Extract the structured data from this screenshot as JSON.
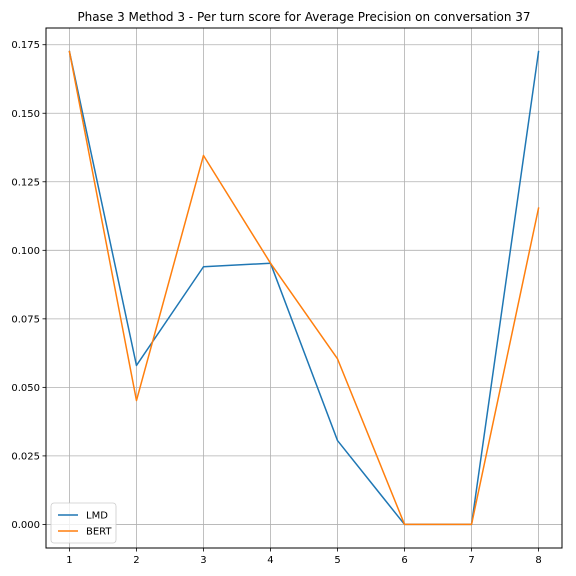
{
  "chart_data": {
    "type": "line",
    "title": "Phase 3 Method 3 - Per turn score for Average Precision on conversation 37",
    "xlabel": "",
    "ylabel": "",
    "x": [
      1,
      2,
      3,
      4,
      5,
      6,
      7,
      8
    ],
    "xticks": [
      "1",
      "2",
      "3",
      "4",
      "5",
      "6",
      "7",
      "8"
    ],
    "yticks": [
      "0.000",
      "0.025",
      "0.050",
      "0.075",
      "0.100",
      "0.125",
      "0.150",
      "0.175"
    ],
    "ylim": [
      -0.0086,
      0.1811
    ],
    "xlim": [
      0.65,
      8.35
    ],
    "grid": true,
    "legend": "lower-left",
    "series": [
      {
        "name": "LMD",
        "color": "#1f77b4",
        "values": [
          0.1725,
          0.058,
          0.094,
          0.0953,
          0.0306,
          0.0,
          0.0,
          0.1725
        ]
      },
      {
        "name": "BERT",
        "color": "#ff7f0e",
        "values": [
          0.1725,
          0.0452,
          0.1346,
          0.0953,
          0.0604,
          0.0,
          0.0,
          0.1154
        ]
      }
    ]
  }
}
